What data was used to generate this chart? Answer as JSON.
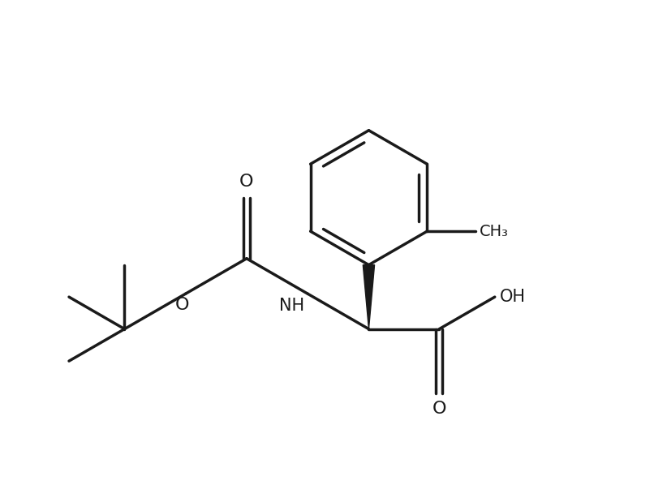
{
  "background_color": "#ffffff",
  "line_color": "#1a1a1a",
  "line_width": 2.5,
  "figsize": [
    8.22,
    5.98
  ],
  "dpi": 100,
  "xlim": [
    0,
    10
  ],
  "ylim": [
    0,
    7.5
  ]
}
